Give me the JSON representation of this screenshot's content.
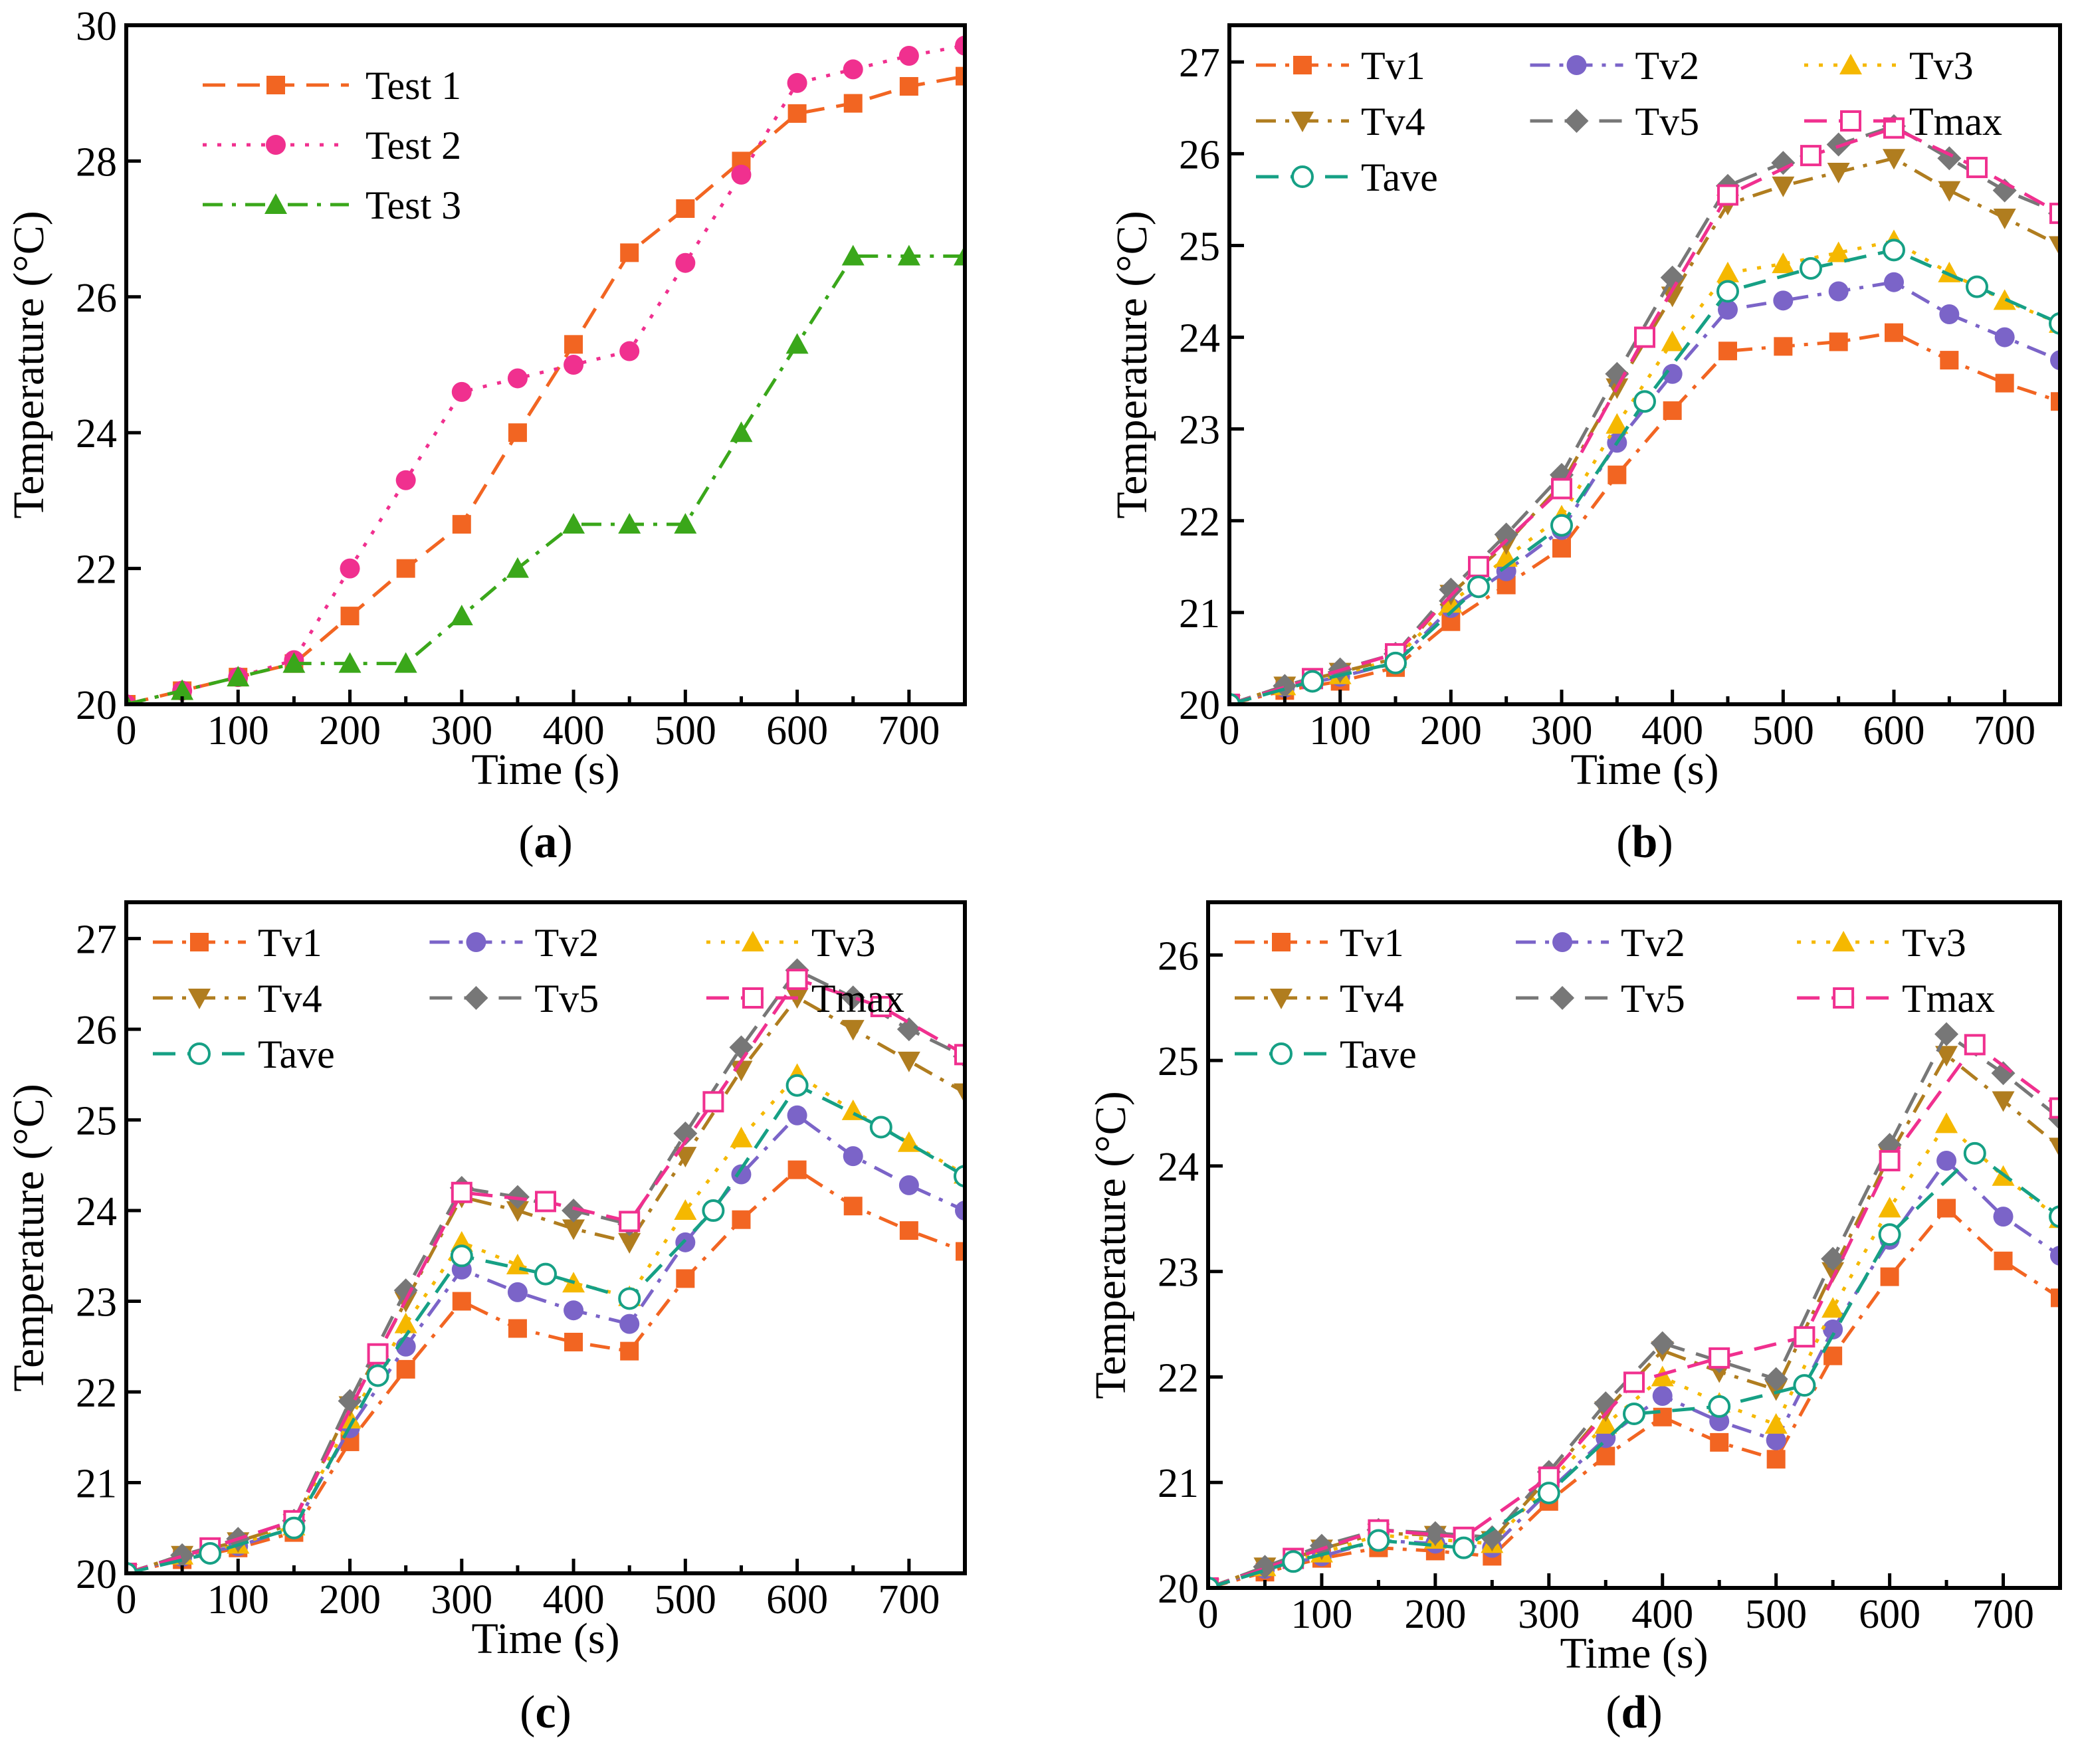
{
  "chart_data": [
    {
      "type": "line",
      "panel_label": "a",
      "xlabel": "Time (s)",
      "ylabel": "Temperature (°C)",
      "xlim": [
        0,
        750
      ],
      "ylim": [
        20,
        30
      ],
      "xticks": [
        0,
        100,
        200,
        300,
        400,
        500,
        600,
        700
      ],
      "yticks": [
        20,
        22,
        24,
        26,
        28,
        30
      ],
      "legend_columns": 1,
      "series": [
        {
          "name": "Test 1",
          "color": "#f26522",
          "dash": "dash",
          "marker": "square",
          "x": [
            0,
            50,
            100,
            150,
            200,
            250,
            300,
            350,
            400,
            450,
            500,
            550,
            600,
            650,
            700,
            750
          ],
          "y": [
            20.0,
            20.2,
            20.4,
            20.6,
            21.3,
            22.0,
            22.65,
            24.0,
            25.3,
            26.65,
            27.3,
            28.0,
            28.7,
            28.85,
            29.1,
            29.25
          ]
        },
        {
          "name": "Test 2",
          "color": "#f0308f",
          "dash": "dot",
          "marker": "circle",
          "x": [
            0,
            50,
            100,
            150,
            200,
            250,
            300,
            350,
            400,
            450,
            500,
            550,
            600,
            650,
            700,
            750
          ],
          "y": [
            20.0,
            20.2,
            20.4,
            20.65,
            22.0,
            23.3,
            24.6,
            24.8,
            25.0,
            25.2,
            26.5,
            27.8,
            29.15,
            29.35,
            29.55,
            29.7
          ]
        },
        {
          "name": "Test 3",
          "color": "#3aa71a",
          "dash": "dashdot",
          "marker": "triangle-up",
          "x": [
            0,
            50,
            100,
            150,
            200,
            250,
            300,
            350,
            400,
            450,
            500,
            550,
            600,
            650,
            700,
            750
          ],
          "y": [
            20.0,
            20.2,
            20.4,
            20.6,
            20.6,
            20.6,
            21.3,
            22.0,
            22.65,
            22.65,
            22.65,
            24.0,
            25.3,
            26.6,
            26.6,
            26.6
          ]
        }
      ]
    },
    {
      "type": "line",
      "panel_label": "b",
      "xlabel": "Time (s)",
      "ylabel": "Temperature (°C)",
      "xlim": [
        0,
        750
      ],
      "ylim": [
        20,
        27.4
      ],
      "xticks": [
        0,
        100,
        200,
        300,
        400,
        500,
        600,
        700
      ],
      "yticks": [
        20,
        21,
        22,
        23,
        24,
        25,
        26,
        27
      ],
      "legend_columns": 3,
      "series": [
        {
          "name": "Tv1",
          "color": "#f26522",
          "dash": "dashdot",
          "marker": "square",
          "x": [
            0,
            50,
            100,
            150,
            200,
            250,
            300,
            350,
            400,
            450,
            500,
            550,
            600,
            650,
            700,
            750
          ],
          "y": [
            20.0,
            20.15,
            20.25,
            20.4,
            20.9,
            21.3,
            21.7,
            22.5,
            23.2,
            23.85,
            23.9,
            23.95,
            24.05,
            23.75,
            23.5,
            23.3
          ]
        },
        {
          "name": "Tv2",
          "color": "#7b64c8",
          "dash": "dashdot",
          "marker": "circle",
          "x": [
            0,
            50,
            100,
            150,
            200,
            250,
            300,
            350,
            400,
            450,
            500,
            550,
            600,
            650,
            700,
            750
          ],
          "y": [
            20.0,
            20.18,
            20.3,
            20.45,
            21.05,
            21.45,
            21.9,
            22.85,
            23.6,
            24.3,
            24.4,
            24.5,
            24.6,
            24.25,
            24.0,
            23.75
          ]
        },
        {
          "name": "Tv3",
          "color": "#f5b800",
          "dash": "dot",
          "marker": "triangle-up",
          "x": [
            0,
            50,
            100,
            150,
            200,
            250,
            300,
            350,
            400,
            450,
            500,
            550,
            600,
            650,
            700,
            750
          ],
          "y": [
            20.0,
            20.2,
            20.32,
            20.5,
            21.1,
            21.6,
            22.05,
            23.05,
            23.95,
            24.7,
            24.8,
            24.92,
            25.05,
            24.7,
            24.4,
            24.15
          ]
        },
        {
          "name": "Tv4",
          "color": "#b07d1f",
          "dash": "dashdot",
          "marker": "triangle-down",
          "x": [
            0,
            50,
            100,
            150,
            200,
            250,
            300,
            350,
            400,
            450,
            500,
            550,
            600,
            650,
            700,
            750
          ],
          "y": [
            20.0,
            20.2,
            20.35,
            20.5,
            21.2,
            21.75,
            22.4,
            23.45,
            24.45,
            25.45,
            25.65,
            25.8,
            25.95,
            25.6,
            25.3,
            25.0
          ]
        },
        {
          "name": "Tv5",
          "color": "#777777",
          "dash": "dash",
          "marker": "diamond",
          "x": [
            0,
            50,
            100,
            150,
            200,
            250,
            300,
            350,
            400,
            450,
            500,
            550,
            600,
            650,
            700,
            750
          ],
          "y": [
            20.0,
            20.2,
            20.38,
            20.55,
            21.25,
            21.85,
            22.5,
            23.6,
            24.65,
            25.65,
            25.9,
            26.1,
            26.3,
            25.95,
            25.6,
            25.35
          ]
        },
        {
          "name": "Tmax",
          "color": "#f0308f",
          "dash": "dash",
          "marker": "square-open",
          "x": [
            0,
            75,
            150,
            225,
            300,
            375,
            450,
            525,
            600,
            675,
            750
          ],
          "y": [
            20.0,
            20.28,
            20.55,
            21.5,
            22.35,
            24.0,
            25.55,
            25.98,
            26.28,
            25.85,
            25.35
          ]
        },
        {
          "name": "Tave",
          "color": "#16a085",
          "dash": "dash",
          "marker": "circle-open",
          "x": [
            0,
            75,
            150,
            225,
            300,
            375,
            450,
            525,
            600,
            675,
            750
          ],
          "y": [
            20.0,
            20.25,
            20.45,
            21.28,
            21.95,
            23.3,
            24.5,
            24.75,
            24.95,
            24.55,
            24.15
          ]
        }
      ]
    },
    {
      "type": "line",
      "panel_label": "c",
      "xlabel": "Time (s)",
      "ylabel": "Temperature (°C)",
      "xlim": [
        0,
        750
      ],
      "ylim": [
        20,
        27.4
      ],
      "xticks": [
        0,
        100,
        200,
        300,
        400,
        500,
        600,
        700
      ],
      "yticks": [
        20,
        21,
        22,
        23,
        24,
        25,
        26,
        27
      ],
      "legend_columns": 3,
      "series": [
        {
          "name": "Tv1",
          "color": "#f26522",
          "dash": "dashdot",
          "marker": "square",
          "x": [
            0,
            50,
            100,
            150,
            200,
            250,
            300,
            350,
            400,
            450,
            500,
            550,
            600,
            650,
            700,
            750
          ],
          "y": [
            20.0,
            20.15,
            20.28,
            20.45,
            21.45,
            22.25,
            23.0,
            22.7,
            22.55,
            22.45,
            23.25,
            23.9,
            24.45,
            24.05,
            23.78,
            23.55
          ]
        },
        {
          "name": "Tv2",
          "color": "#7b64c8",
          "dash": "dashdot",
          "marker": "circle",
          "x": [
            0,
            50,
            100,
            150,
            200,
            250,
            300,
            350,
            400,
            450,
            500,
            550,
            600,
            650,
            700,
            750
          ],
          "y": [
            20.0,
            20.18,
            20.3,
            20.5,
            21.6,
            22.5,
            23.35,
            23.1,
            22.9,
            22.75,
            23.65,
            24.4,
            25.05,
            24.6,
            24.28,
            24.0
          ]
        },
        {
          "name": "Tv3",
          "color": "#f5b800",
          "dash": "dot",
          "marker": "triangle-up",
          "x": [
            0,
            50,
            100,
            150,
            200,
            250,
            300,
            350,
            400,
            450,
            500,
            550,
            600,
            650,
            700,
            750
          ],
          "y": [
            20.0,
            20.2,
            20.32,
            20.52,
            21.7,
            22.75,
            23.65,
            23.4,
            23.2,
            23.05,
            24.0,
            24.8,
            25.5,
            25.1,
            24.75,
            24.4
          ]
        },
        {
          "name": "Tv4",
          "color": "#b07d1f",
          "dash": "dashdot",
          "marker": "triangle-down",
          "x": [
            0,
            50,
            100,
            150,
            200,
            250,
            300,
            350,
            400,
            450,
            500,
            550,
            600,
            650,
            700,
            750
          ],
          "y": [
            20.0,
            20.2,
            20.35,
            20.55,
            21.85,
            23.0,
            24.15,
            24.0,
            23.8,
            23.65,
            24.6,
            25.55,
            26.35,
            26.0,
            25.65,
            25.3
          ]
        },
        {
          "name": "Tv5",
          "color": "#777777",
          "dash": "dash",
          "marker": "diamond",
          "x": [
            0,
            50,
            100,
            150,
            200,
            250,
            300,
            350,
            400,
            450,
            500,
            550,
            600,
            650,
            700,
            750
          ],
          "y": [
            20.0,
            20.2,
            20.38,
            20.58,
            21.9,
            23.12,
            24.25,
            24.15,
            24.0,
            23.85,
            24.85,
            25.8,
            26.65,
            26.35,
            26.0,
            25.7
          ]
        },
        {
          "name": "Tmax",
          "color": "#f0308f",
          "dash": "dash",
          "marker": "square-open",
          "x": [
            0,
            75,
            150,
            225,
            300,
            375,
            450,
            525,
            600,
            675,
            750
          ],
          "y": [
            20.0,
            20.28,
            20.58,
            22.42,
            24.2,
            24.1,
            23.88,
            25.2,
            26.55,
            26.25,
            25.72
          ]
        },
        {
          "name": "Tave",
          "color": "#16a085",
          "dash": "dash",
          "marker": "circle-open",
          "x": [
            0,
            75,
            150,
            225,
            300,
            375,
            450,
            525,
            600,
            675,
            750
          ],
          "y": [
            20.0,
            20.22,
            20.5,
            22.18,
            23.5,
            23.3,
            23.03,
            24.0,
            25.38,
            24.92,
            24.38
          ]
        }
      ]
    },
    {
      "type": "line",
      "panel_label": "d",
      "xlabel": "Time (s)",
      "ylabel": "Temperature (°C)",
      "xlim": [
        0,
        750
      ],
      "ylim": [
        20,
        26.5
      ],
      "xticks": [
        0,
        100,
        200,
        300,
        400,
        500,
        600,
        700
      ],
      "yticks": [
        20,
        21,
        22,
        23,
        24,
        25,
        26
      ],
      "legend_columns": 3,
      "series": [
        {
          "name": "Tv1",
          "color": "#f26522",
          "dash": "dashdot",
          "marker": "square",
          "x": [
            0,
            50,
            100,
            150,
            200,
            250,
            300,
            350,
            400,
            450,
            500,
            550,
            600,
            650,
            700,
            750
          ],
          "y": [
            20.0,
            20.15,
            20.28,
            20.38,
            20.35,
            20.3,
            20.82,
            21.25,
            21.62,
            21.38,
            21.22,
            22.2,
            22.95,
            23.6,
            23.1,
            22.75
          ]
        },
        {
          "name": "Tv2",
          "color": "#7b64c8",
          "dash": "dashdot",
          "marker": "circle",
          "x": [
            0,
            50,
            100,
            150,
            200,
            250,
            300,
            350,
            400,
            450,
            500,
            550,
            600,
            650,
            700,
            750
          ],
          "y": [
            20.0,
            20.18,
            20.3,
            20.45,
            20.42,
            20.38,
            20.92,
            21.42,
            21.82,
            21.58,
            21.4,
            22.45,
            23.3,
            24.05,
            23.52,
            23.15
          ]
        },
        {
          "name": "Tv3",
          "color": "#f5b800",
          "dash": "dot",
          "marker": "triangle-up",
          "x": [
            0,
            50,
            100,
            150,
            200,
            250,
            300,
            350,
            400,
            450,
            500,
            550,
            600,
            650,
            700,
            750
          ],
          "y": [
            20.0,
            20.2,
            20.33,
            20.5,
            20.46,
            20.42,
            21.0,
            21.55,
            22.0,
            21.75,
            21.55,
            22.65,
            23.6,
            24.4,
            23.9,
            23.5
          ]
        },
        {
          "name": "Tv4",
          "color": "#b07d1f",
          "dash": "dashdot",
          "marker": "triangle-down",
          "x": [
            0,
            50,
            100,
            150,
            200,
            250,
            300,
            350,
            400,
            450,
            500,
            550,
            600,
            650,
            700,
            750
          ],
          "y": [
            20.0,
            20.2,
            20.37,
            20.52,
            20.5,
            20.45,
            21.05,
            21.68,
            22.25,
            22.05,
            21.88,
            23.0,
            24.1,
            25.05,
            24.62,
            24.18
          ]
        },
        {
          "name": "Tv5",
          "color": "#777777",
          "dash": "dash",
          "marker": "diamond",
          "x": [
            0,
            50,
            100,
            150,
            200,
            250,
            300,
            350,
            400,
            450,
            500,
            550,
            600,
            650,
            700,
            750
          ],
          "y": [
            20.0,
            20.2,
            20.4,
            20.55,
            20.52,
            20.48,
            21.1,
            21.75,
            22.32,
            22.15,
            21.98,
            23.12,
            24.2,
            25.25,
            24.88,
            24.45
          ]
        },
        {
          "name": "Tmax",
          "color": "#f0308f",
          "dash": "dash",
          "marker": "square-open",
          "x": [
            0,
            75,
            150,
            225,
            300,
            375,
            450,
            525,
            600,
            675,
            750
          ],
          "y": [
            20.0,
            20.28,
            20.55,
            20.48,
            21.05,
            21.95,
            22.18,
            22.38,
            24.05,
            25.15,
            24.55
          ]
        },
        {
          "name": "Tave",
          "color": "#16a085",
          "dash": "dash",
          "marker": "circle-open",
          "x": [
            0,
            75,
            150,
            225,
            300,
            375,
            450,
            525,
            600,
            675,
            750
          ],
          "y": [
            20.0,
            20.25,
            20.45,
            20.38,
            20.9,
            21.65,
            21.72,
            21.92,
            23.35,
            24.12,
            23.52
          ]
        }
      ]
    }
  ]
}
